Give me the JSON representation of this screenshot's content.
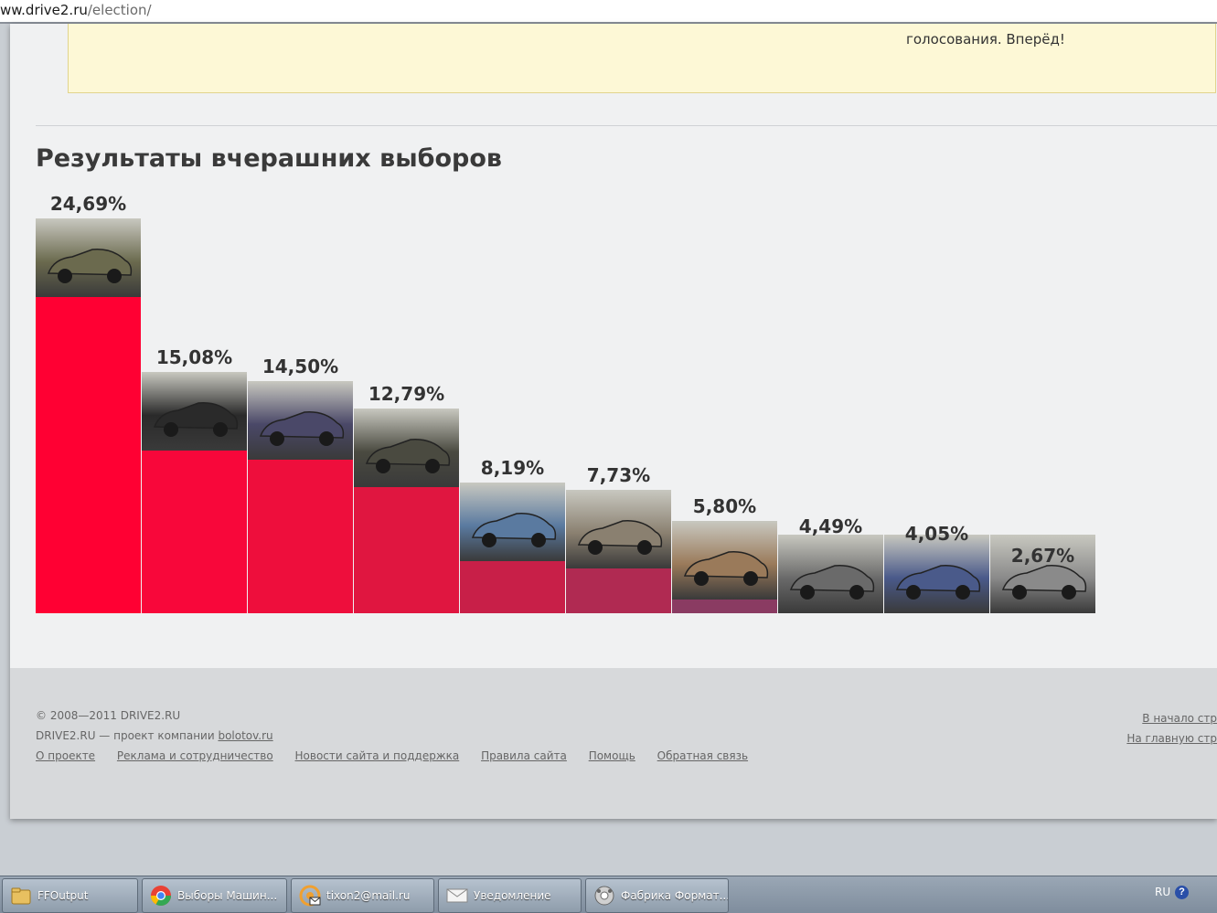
{
  "browser": {
    "url_host": "ww.drive2.ru",
    "url_path": "/election/"
  },
  "notice": {
    "text": "голосования. Вперёд!"
  },
  "section_title": "Результаты вчерашних выборов",
  "chart_data": {
    "type": "bar",
    "title": "Результаты вчерашних выборов",
    "categories": [
      "",
      "",
      "",
      "",
      "",
      "",
      "",
      "",
      "",
      ""
    ],
    "values": [
      24.69,
      15.08,
      14.5,
      12.79,
      8.19,
      7.73,
      5.8,
      4.49,
      4.05,
      2.67
    ],
    "labels": [
      "24,69%",
      "15,08%",
      "14,50%",
      "12,79%",
      "8,19%",
      "7,73%",
      "5,80%",
      "4,49%",
      "4,05%",
      "2,67%"
    ],
    "colors": [
      "#ff0033",
      "#f8073a",
      "#ee0e3c",
      "#e01640",
      "#c81f48",
      "#b02a52",
      "#8a3b62",
      "#7a4868",
      "#6d5373",
      "#5f6680"
    ],
    "photo_colors": [
      "#6b6a4e",
      "#2a2a2a",
      "#4a4868",
      "#4a4a40",
      "#5a7aa0",
      "#8a8070",
      "#9a7a5a",
      "#6a6a6a",
      "#4a5a8a",
      "#8a8a8a"
    ],
    "ylim": [
      0,
      30
    ],
    "grid": false
  },
  "footer": {
    "copyright": "© 2008—2011 DRIVE2.RU",
    "company_prefix": "DRIVE2.RU — проект компании ",
    "company_link": "bolotov.ru",
    "links": [
      "О проекте",
      "Реклама и сотрудничество",
      "Новости сайта и поддержка",
      "Правила сайта",
      "Помощь",
      "Обратная связь"
    ],
    "to_top": "В начало стр",
    "to_home": "На главную стр"
  },
  "taskbar": {
    "items": [
      {
        "label": "FFOutput",
        "icon": "folder-icon",
        "color": "#e8c060"
      },
      {
        "label": "Выборы Машин...",
        "icon": "chrome-icon",
        "color": "#e94235"
      },
      {
        "label": "tixon2@mail.ru",
        "icon": "mail-agent-icon",
        "color": "#f0a030"
      },
      {
        "label": "Уведомление",
        "icon": "envelope-icon",
        "color": "#f0f0f0"
      },
      {
        "label": "Фабрика Формат...",
        "icon": "format-factory-icon",
        "color": "#d0d0d0"
      }
    ],
    "lang": "RU",
    "help": "?"
  }
}
